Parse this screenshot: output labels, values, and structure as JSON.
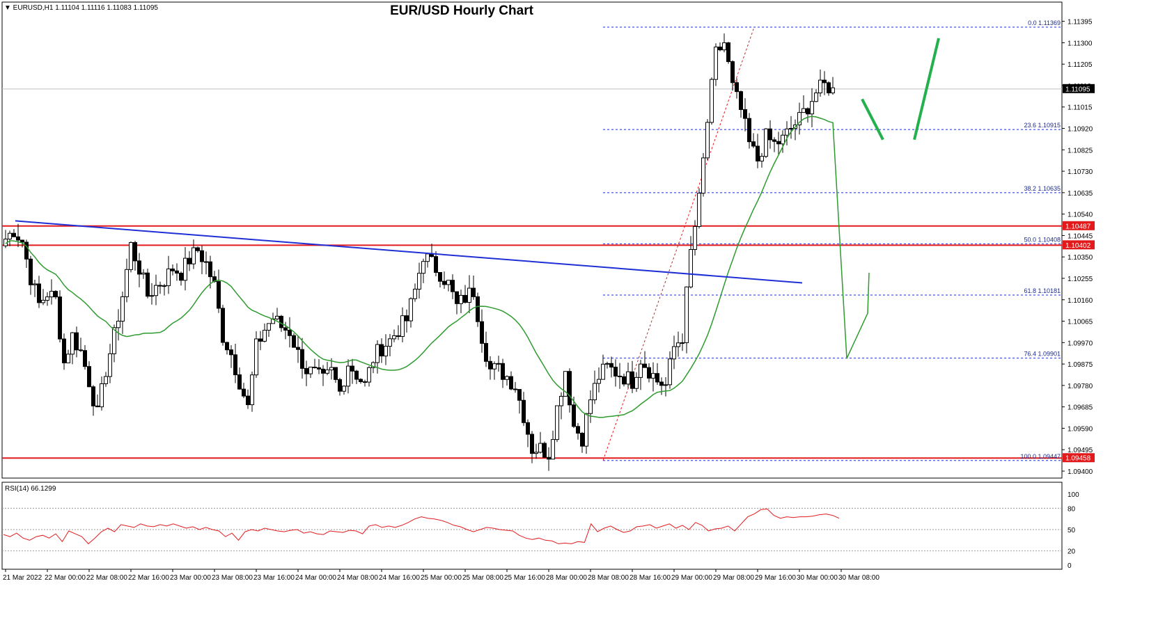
{
  "chart_data": [
    {
      "type": "candlestick",
      "title": "EUR/USD Hourly Chart",
      "header": "EURUSD,H1  1.11104 1.11116 1.11083 1.11095",
      "current_price_label": "1.11095",
      "ylim": [
        1.094,
        1.114
      ],
      "y_ticks": [
        "1.11395",
        "1.11300",
        "1.11205",
        "1.11110",
        "1.11015",
        "1.10920",
        "1.10825",
        "1.10730",
        "1.10635",
        "1.10540",
        "1.10445",
        "1.10350",
        "1.10255",
        "1.10160",
        "1.10065",
        "1.09970",
        "1.09875",
        "1.09780",
        "1.09685",
        "1.09590",
        "1.09495",
        "1.09400"
      ],
      "x_labels": [
        "21 Mar 2022",
        "22 Mar 00:00",
        "22 Mar 08:00",
        "22 Mar 16:00",
        "23 Mar 00:00",
        "23 Mar 08:00",
        "23 Mar 16:00",
        "24 Mar 00:00",
        "24 Mar 08:00",
        "24 Mar 16:00",
        "25 Mar 00:00",
        "25 Mar 08:00",
        "25 Mar 16:00",
        "28 Mar 00:00",
        "28 Mar 08:00",
        "28 Mar 16:00",
        "29 Mar 00:00",
        "29 Mar 08:00",
        "29 Mar 16:00",
        "30 Mar 00:00",
        "30 Mar 08:00"
      ],
      "fibonacci_levels": [
        {
          "label": "0.0 1.11369",
          "value": 1.11369
        },
        {
          "label": "23.6 1.10915",
          "value": 1.10915
        },
        {
          "label": "38.2 1.10635",
          "value": 1.10635
        },
        {
          "label": "50.0 1.10408",
          "value": 1.10408
        },
        {
          "label": "61.8 1.10181",
          "value": 1.10181
        },
        {
          "label": "76.4 1.09901",
          "value": 1.09901
        },
        {
          "label": "100.0 1.09447",
          "value": 1.09447
        }
      ],
      "horizontal_lines": [
        {
          "label": "1.10487",
          "value": 1.10487,
          "color": "#e31a1c"
        },
        {
          "label": "1.10402",
          "value": 1.10402,
          "color": "#e31a1c"
        },
        {
          "label": "1.09458",
          "value": 1.09458,
          "color": "#e31a1c"
        }
      ],
      "trendline": {
        "color": "#1f2fd6",
        "from_value": 1.1051,
        "to_value": 1.10235
      },
      "moving_average": {
        "color": "#2e9b2e"
      },
      "projection_color": "#22b14c",
      "candle_close_path": [
        [
          0,
          1.1043
        ],
        [
          2,
          1.1047
        ],
        [
          4,
          1.1042
        ],
        [
          6,
          1.1026
        ],
        [
          8,
          1.1014
        ],
        [
          10,
          1.1019
        ],
        [
          12,
          1.1016
        ],
        [
          14,
          1.0988
        ],
        [
          16,
          1.1
        ],
        [
          18,
          1.0993
        ],
        [
          20,
          1.098
        ],
        [
          22,
          1.0965
        ],
        [
          24,
          1.0985
        ],
        [
          26,
          1.1
        ],
        [
          28,
          1.1018
        ],
        [
          30,
          1.104
        ],
        [
          32,
          1.103
        ],
        [
          34,
          1.1018
        ],
        [
          36,
          1.1022
        ],
        [
          38,
          1.1025
        ],
        [
          40,
          1.103
        ],
        [
          42,
          1.1028
        ],
        [
          44,
          1.1034
        ],
        [
          46,
          1.1038
        ],
        [
          48,
          1.1032
        ],
        [
          50,
          1.1022
        ],
        [
          52,
          1.1
        ],
        [
          54,
          1.0992
        ],
        [
          56,
          1.098
        ],
        [
          58,
          1.0968
        ],
        [
          60,
          1.0995
        ],
        [
          62,
          1.1003
        ],
        [
          64,
          1.1008
        ],
        [
          66,
          1.1004
        ],
        [
          68,
          1.1002
        ],
        [
          70,
          1.0992
        ],
        [
          72,
          1.0985
        ],
        [
          74,
          1.0983
        ],
        [
          76,
          1.098
        ],
        [
          78,
          1.0984
        ],
        [
          80,
          1.0975
        ],
        [
          82,
          1.0988
        ],
        [
          84,
          1.0983
        ],
        [
          86,
          1.0978
        ],
        [
          88,
          1.099
        ],
        [
          90,
          1.0995
        ],
        [
          92,
          1.0998
        ],
        [
          94,
          1.1003
        ],
        [
          96,
          1.1007
        ],
        [
          98,
          1.102
        ],
        [
          100,
          1.1036
        ],
        [
          102,
          1.1032
        ],
        [
          104,
          1.1028
        ],
        [
          106,
          1.1023
        ],
        [
          108,
          1.1013
        ],
        [
          110,
          1.1017
        ],
        [
          112,
          1.102
        ],
        [
          114,
          1.1
        ],
        [
          116,
          1.0985
        ],
        [
          118,
          1.0985
        ],
        [
          120,
          1.0982
        ],
        [
          122,
          1.0978
        ],
        [
          124,
          1.0965
        ],
        [
          126,
          1.095
        ],
        [
          128,
          1.095
        ],
        [
          130,
          1.0948
        ],
        [
          132,
          1.0968
        ],
        [
          134,
          1.0985
        ],
        [
          136,
          1.096
        ],
        [
          138,
          1.0955
        ],
        [
          140,
          1.0972
        ],
        [
          142,
          1.0982
        ],
        [
          144,
          1.0986
        ],
        [
          146,
          1.0984
        ],
        [
          148,
          1.0982
        ],
        [
          150,
          1.098
        ],
        [
          152,
          1.099
        ],
        [
          154,
          1.0985
        ],
        [
          156,
          1.098
        ],
        [
          158,
          1.0978
        ],
        [
          160,
          1.0995
        ],
        [
          162,
          1.1
        ],
        [
          164,
          1.1037
        ],
        [
          166,
          1.106
        ],
        [
          168,
          1.1095
        ],
        [
          170,
          1.1125
        ],
        [
          172,
          1.113
        ],
        [
          174,
          1.111
        ],
        [
          176,
          1.11
        ],
        [
          178,
          1.1085
        ],
        [
          180,
          1.1078
        ],
        [
          182,
          1.1088
        ],
        [
          184,
          1.1085
        ],
        [
          186,
          1.1087
        ],
        [
          188,
          1.1092
        ],
        [
          190,
          1.1096
        ],
        [
          192,
          1.1102
        ],
        [
          194,
          1.1108
        ],
        [
          196,
          1.1111
        ],
        [
          198,
          1.111
        ]
      ],
      "rsi": {
        "label": "RSI(14) 66.1299",
        "levels": [
          80,
          50,
          20
        ],
        "ticks": [
          "100",
          "80",
          "50",
          "20",
          "0"
        ],
        "values": [
          43,
          40,
          45,
          38,
          35,
          40,
          42,
          38,
          44,
          33,
          48,
          44,
          40,
          30,
          38,
          47,
          52,
          47,
          57,
          55,
          53,
          58,
          55,
          54,
          57,
          55,
          58,
          55,
          52,
          54,
          50,
          53,
          50,
          48,
          40,
          45,
          35,
          47,
          50,
          48,
          52,
          50,
          48,
          47,
          49,
          50,
          45,
          47,
          44,
          43,
          48,
          47,
          46,
          49,
          48,
          44,
          55,
          57,
          53,
          55,
          53,
          56,
          60,
          65,
          68,
          66,
          65,
          63,
          60,
          56,
          54,
          50,
          47,
          50,
          53,
          52,
          50,
          49,
          48,
          42,
          38,
          36,
          38,
          35,
          34,
          30,
          31,
          30,
          33,
          32,
          58,
          47,
          52,
          55,
          50,
          46,
          48,
          54,
          55,
          57,
          52,
          55,
          58,
          52,
          56,
          50,
          60,
          56,
          48,
          51,
          52,
          55,
          48,
          58,
          68,
          72,
          78,
          79,
          70,
          66,
          68,
          67,
          68,
          68,
          69,
          71,
          72,
          70,
          66
        ]
      }
    }
  ]
}
